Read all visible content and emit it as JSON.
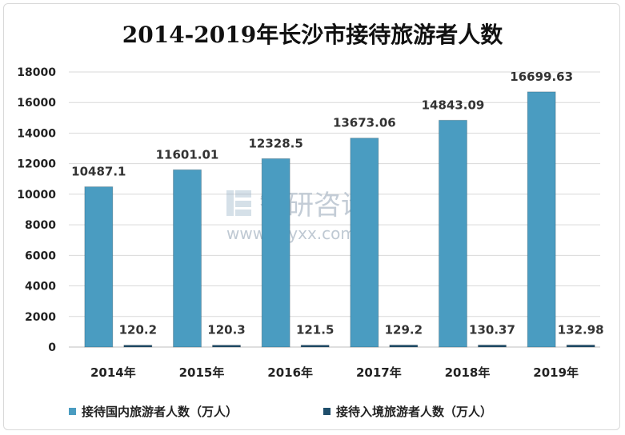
{
  "chart_data": {
    "type": "bar",
    "title": "2014-2019年长沙市接待旅游者人数",
    "categories": [
      "2014年",
      "2015年",
      "2016年",
      "2017年",
      "2018年",
      "2019年"
    ],
    "series": [
      {
        "name": "接待国内旅游者人数（万人）",
        "values": [
          10487.1,
          11601.01,
          12328.5,
          13673.06,
          14843.09,
          16699.63
        ],
        "labels": [
          "10487.1",
          "11601.01",
          "12328.5",
          "13673.06",
          "14843.09",
          "16699.63"
        ],
        "color": "#4a9cc1"
      },
      {
        "name": "接待入境旅游者人数（万人）",
        "values": [
          120.2,
          120.3,
          121.5,
          129.2,
          130.37,
          132.98
        ],
        "labels": [
          "120.2",
          "120.3",
          "121.5",
          "129.2",
          "130.37",
          "132.98"
        ],
        "color": "#1f4e6b"
      }
    ],
    "ylim": [
      0,
      18000
    ],
    "yticks": [
      0,
      2000,
      4000,
      6000,
      8000,
      10000,
      12000,
      14000,
      16000,
      18000
    ],
    "grid": true,
    "legend": "bottom-left"
  },
  "watermark": {
    "name": "智研咨询",
    "url": "www.chyxx.com"
  }
}
